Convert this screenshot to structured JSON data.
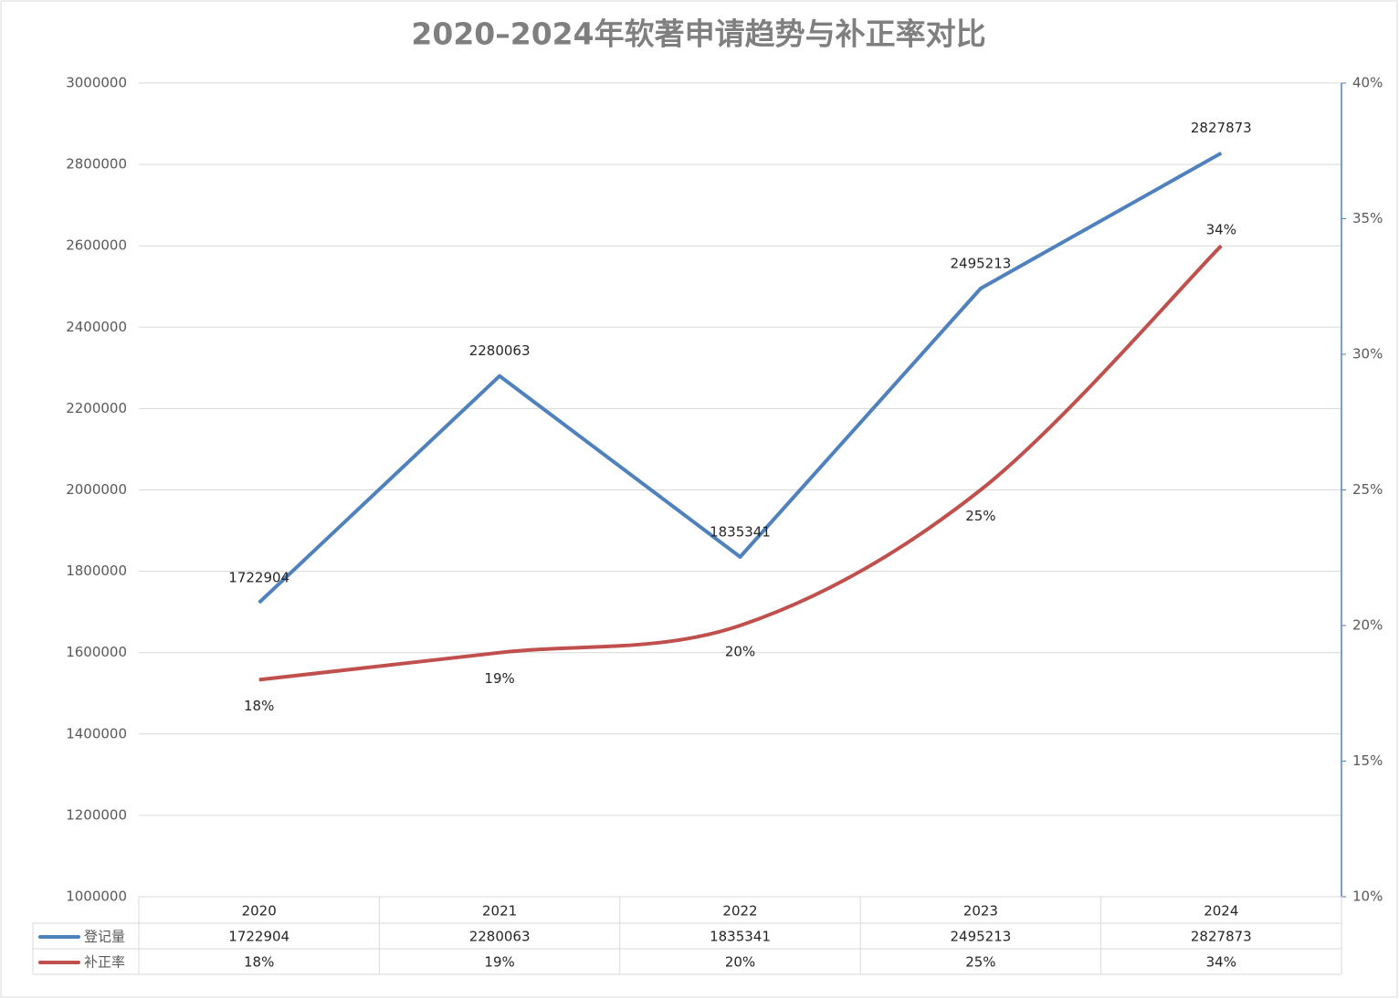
{
  "chart_data": {
    "type": "line",
    "title": "2020–2024年软著申请趋势与补正率对比",
    "categories": [
      "2020",
      "2021",
      "2022",
      "2023",
      "2024"
    ],
    "series": [
      {
        "name": "登记量",
        "color": "#4f81bd",
        "values": [
          1722904,
          2280063,
          1835341,
          2495213,
          2827873
        ]
      },
      {
        "name": "补正率",
        "color": "#c0504d",
        "axis": "y2",
        "smooth": true,
        "values": [
          18,
          19,
          20,
          25,
          34
        ],
        "value_labels": [
          "18%",
          "19%",
          "20%",
          "25%",
          "34%"
        ]
      }
    ],
    "ylim": [
      1000000,
      3000000
    ],
    "yticks": [
      1000000,
      1200000,
      1400000,
      1600000,
      1800000,
      2000000,
      2200000,
      2400000,
      2600000,
      2800000,
      3000000
    ],
    "y2lim": [
      10,
      40
    ],
    "y2ticks": [
      {
        "value": 10,
        "label": "10%"
      },
      {
        "value": 15,
        "label": "15%"
      },
      {
        "value": 20,
        "label": "20%"
      },
      {
        "value": 25,
        "label": "25%"
      },
      {
        "value": 30,
        "label": "30%"
      },
      {
        "value": 35,
        "label": "35%"
      },
      {
        "value": 40,
        "label": "40%"
      }
    ],
    "grid": true,
    "data_table": true
  }
}
